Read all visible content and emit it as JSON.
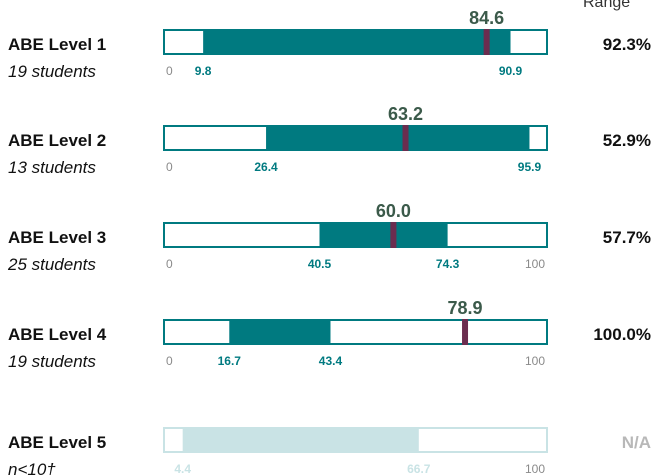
{
  "colors": {
    "bar": "#007a80",
    "bar_faded": "#c9e3e5",
    "frame": "#007a80",
    "frame_faded": "#c9e3e5",
    "marker": "#6b2d4f",
    "average_text": "#3b5a4a",
    "range_label": "#007a80",
    "range_label_faded": "#c9e3e5"
  },
  "header": {
    "right_label": "Range"
  },
  "chart_data": {
    "type": "bar",
    "subtype": "range-with-marker",
    "title": "",
    "scale": [
      0,
      100
    ],
    "rows": [
      {
        "name": "ABE Level 1",
        "subtitle": "19 students",
        "low": 9.8,
        "high": 90.9,
        "average": 84.6,
        "percent": "92.3%",
        "show_zero": true,
        "show_hundred": false,
        "faded": false
      },
      {
        "name": "ABE Level 2",
        "subtitle": "13 students",
        "low": 26.4,
        "high": 95.9,
        "average": 63.2,
        "percent": "52.9%",
        "show_zero": true,
        "show_hundred": false,
        "faded": false
      },
      {
        "name": "ABE Level 3",
        "subtitle": "25 students",
        "low": 40.5,
        "high": 74.3,
        "average": 60.0,
        "percent": "57.7%",
        "show_zero": true,
        "show_hundred": true,
        "faded": false
      },
      {
        "name": "ABE Level 4",
        "subtitle": "19 students",
        "low": 16.7,
        "high": 43.4,
        "average": 78.9,
        "percent": "100.0%",
        "show_zero": true,
        "show_hundred": true,
        "faded": false
      },
      {
        "name": "ABE Level 5",
        "subtitle": "n<10†",
        "low": 4.4,
        "high": 66.7,
        "average": null,
        "percent": "N/A",
        "show_zero": false,
        "show_hundred": true,
        "faded": true
      }
    ],
    "zero_label": "0",
    "hundred_label": "100"
  }
}
